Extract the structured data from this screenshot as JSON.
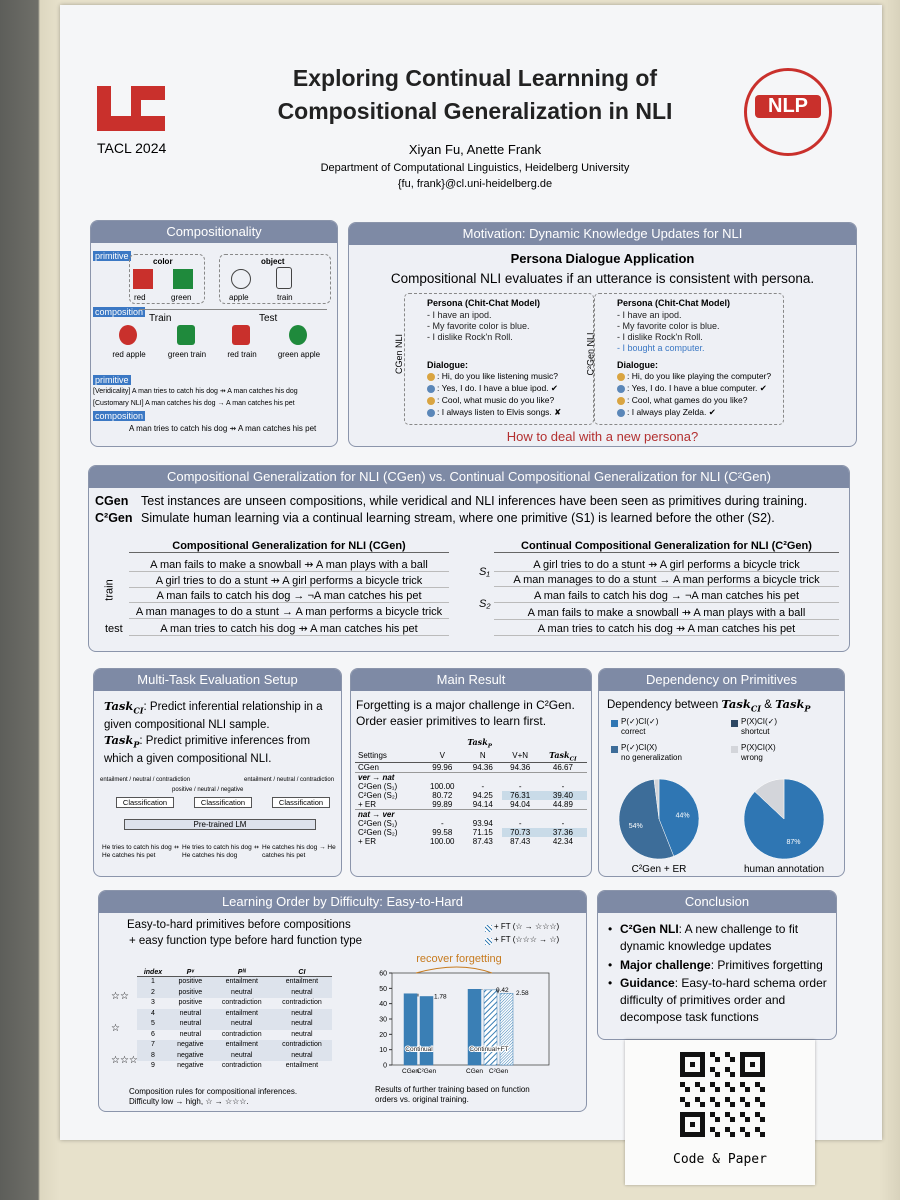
{
  "header": {
    "title_line1": "Exploring Continual Learnning of",
    "title_line2": "Compositional Generalization in NLI",
    "venue": "TACL 2024",
    "authors": "Xiyan Fu, Anette Frank",
    "affiliation": "Department of Computational Linguistics, Heidelberg University",
    "email": "{fu, frank}@cl.uni-heidelberg.de",
    "logo_text": "NLP"
  },
  "compositionality": {
    "title": "Compositionality",
    "primitive_tag": "primitive",
    "color_label": "color",
    "object_label": "object",
    "items": [
      "red",
      "green",
      "apple",
      "train"
    ],
    "composition_tag": "composition",
    "train_label": "Train",
    "test_label": "Test",
    "compositions": [
      "red apple",
      "green train",
      "red train",
      "green apple"
    ],
    "examples": [
      "[Veridicality] A man tries to catch his dog ⇸ A man catches his dog",
      "[Customary NLI] A man catches his dog → A man catches his pet"
    ],
    "composition_example": "A man tries to catch his dog ⇸ A man catches his pet"
  },
  "motivation": {
    "title": "Motivation: Dynamic Knowledge Updates for NLI",
    "subtitle": "Persona Dialogue Application",
    "lead": "Compositional NLI evaluates if an utterance is consistent with persona.",
    "panels": [
      {
        "side": "CGen NLI",
        "persona_label": "Persona (Chit-Chat Model)",
        "persona": [
          "- I have an ipod.",
          "- My favorite color is blue.",
          "- I dislike Rock'n Roll."
        ],
        "dialogue_label": "Dialogue:",
        "dialogue": [
          ": Hi, do you like listening music?",
          ": Yes, I do. I have a blue ipod. ✔",
          ": Cool, what music do you like?",
          ": I always listen to Elvis songs. ✘"
        ]
      },
      {
        "side": "C²Gen NLI",
        "persona_label": "Persona (Chit-Chat Model)",
        "persona": [
          "- I have an ipod.",
          "- My favorite color is blue.",
          "- I dislike Rock'n Roll.",
          "- I bought a computer."
        ],
        "dialogue_label": "Dialogue:",
        "dialogue": [
          ": Hi, do you like playing the computer?",
          ": Yes, I do. I have a blue computer. ✔",
          ": Cool, what games do you like?",
          ": I always play Zelda. ✔"
        ]
      }
    ],
    "question": "How to deal with a new persona?"
  },
  "cgen": {
    "title": "Compositional Generalization for NLI (CGen) vs. Continual Compositional Generalization for NLI (C²Gen)",
    "defs": [
      {
        "term": "CGen",
        "text": "Test instances are unseen compositions, while veridical and NLI inferences have been seen as primitives during training."
      },
      {
        "term": "C²Gen",
        "text": "Simulate human learning via a continual learning stream, where one primitive (S1) is learned before the other (S2)."
      }
    ],
    "left": {
      "title": "Compositional Generalization for NLI (CGen)",
      "train_label": "train",
      "test_label": "test",
      "rows": [
        "A man fails to make a snowball ⇸ A man plays with a ball",
        "A girl tries to do a stunt ⇸ A girl performs a bicycle trick",
        "A man fails to catch his dog → ¬A man catches his pet",
        "A man manages to do a stunt → A man performs a bicycle trick",
        "A man tries to catch his dog ⇸ A man catches his pet"
      ]
    },
    "right": {
      "title": "Continual Compositional Generalization for NLI (C²Gen)",
      "s1_label": "S₁",
      "s2_label": "S₂",
      "rows": [
        "A girl tries to do a stunt ⇸ A girl performs a bicycle trick",
        "A man manages to do a stunt → A man performs a bicycle trick",
        "A man fails to catch his dog → ¬A man catches his pet",
        "A man fails to make a snowball ⇸ A man plays with a ball",
        "A man tries to catch his dog ⇸ A man catches his pet"
      ]
    }
  },
  "multitask": {
    "title": "Multi-Task Evaluation Setup",
    "tasks": [
      {
        "name": "Task",
        "sub": "CI",
        "text": ": Predict inferential relationship in a given compositional NLI sample."
      },
      {
        "name": "Task",
        "sub": "P",
        "text": ": Predict primitive inferences from which a given compositional NLI."
      }
    ],
    "outputs": [
      "entailment / neutral / contradiction",
      "positive / neutral / negative",
      "entailment / neutral / contradiction"
    ],
    "classifier": "Classification",
    "encoder": "Pre-trained LM",
    "inputs": [
      "He tries to catch his dog ⇸ He catches his pet",
      "He tries to catch his dog ⇸ He catches his dog",
      "He catches his dog → He catches his pet"
    ]
  },
  "main_result": {
    "title": "Main Result",
    "text": "Forgetting is a major challenge in C²Gen. Order easier primitives to learn first.",
    "header_group": {
      "name": "Task",
      "sub": "P"
    },
    "header": [
      "Settings",
      "V",
      "N",
      "V+N"
    ],
    "header_ci": {
      "name": "Task",
      "sub": "CI"
    },
    "rows": [
      [
        "CGen",
        "99.96",
        "94.36",
        "94.36",
        "46.67"
      ]
    ],
    "groups": [
      {
        "label": "ver → nat",
        "rows": [
          [
            "C²Gen (S₁)",
            "100.00",
            "-",
            "-",
            "-"
          ],
          [
            "C²Gen (S₂)",
            "80.72",
            "94.25",
            "76.31",
            "39.40"
          ],
          [
            "+ ER",
            "99.89",
            "94.14",
            "94.04",
            "44.89"
          ]
        ]
      },
      {
        "label": "nat → ver",
        "rows": [
          [
            "C²Gen (S₁)",
            "-",
            "93.94",
            "-",
            "-"
          ],
          [
            "C²Gen (S₂)",
            "99.58",
            "71.15",
            "70.73",
            "37.36"
          ],
          [
            "+ ER",
            "100.00",
            "87.43",
            "87.43",
            "42.34"
          ]
        ]
      }
    ]
  },
  "dependency": {
    "title": "Dependency on Primitives",
    "text_prefix": "Dependency between",
    "task_a": {
      "name": "Task",
      "sub": "CI"
    },
    "joiner": "&",
    "task_b": {
      "name": "Task",
      "sub": "P"
    },
    "legend": [
      {
        "label": "P(✓)CI(✓)",
        "desc": "correct",
        "color": "#2f76b3"
      },
      {
        "label": "P(X)CI(✓)",
        "desc": "shortcut",
        "color": "#2c4763"
      },
      {
        "label": "P(✓)CI(X)",
        "desc": "no generalization",
        "color": "#3d6d99"
      },
      {
        "label": "P(X)CI(X)",
        "desc": "wrong",
        "color": "#d3d5da"
      }
    ],
    "pies": [
      {
        "caption": "C²Gen + ER",
        "values": [
          44,
          54,
          2
        ],
        "value_labels": [
          "44%",
          "54%",
          null
        ],
        "colors": [
          "#2f76b3",
          "#3d6d99",
          "#d3d5da"
        ]
      },
      {
        "caption": "human annotation",
        "values": [
          87,
          13
        ],
        "value_labels": [
          "87%",
          null
        ],
        "colors": [
          "#2f76b3",
          "#d3d5da"
        ]
      }
    ]
  },
  "learning_order": {
    "title": "Learning Order by Difficulty: Easy-to-Hard",
    "lines": [
      "Easy-to-hard primitives before compositions",
      "+ easy function type before hard function type"
    ],
    "legend": [
      "+ FT (☆ → ☆☆☆)",
      "+ FT (☆☆☆ → ☆)"
    ],
    "table": {
      "header": [
        "index",
        "Pᵛ",
        "Pᴺ",
        "CI"
      ],
      "rows": [
        [
          "1",
          "positive",
          "entailment",
          "entailment"
        ],
        [
          "2",
          "positive",
          "neutral",
          "neutral"
        ],
        [
          "3",
          "positive",
          "contradiction",
          "contradiction"
        ],
        [
          "4",
          "neutral",
          "entailment",
          "neutral"
        ],
        [
          "5",
          "neutral",
          "neutral",
          "neutral"
        ],
        [
          "6",
          "neutral",
          "contradiction",
          "neutral"
        ],
        [
          "7",
          "negative",
          "entailment",
          "contradiction"
        ],
        [
          "8",
          "negative",
          "neutral",
          "neutral"
        ],
        [
          "9",
          "negative",
          "contradiction",
          "entailment"
        ]
      ],
      "stars": [
        "☆☆",
        "☆",
        "☆☆☆"
      ]
    },
    "table_caption": [
      "Composition rules for compositional inferences.",
      "Difficulty low → high, ☆ → ☆☆☆."
    ],
    "chart": {
      "type": "bar",
      "annotation": "recover forgetting",
      "categories": [
        "CGen",
        "C²Gen",
        "CGen",
        "C²Gen",
        null
      ],
      "values": [
        46.5,
        44.7,
        49.4,
        49.0,
        46.8
      ],
      "patterns": [
        "solid",
        "solid",
        "solid",
        "hatch",
        "dense"
      ],
      "color": "#3a7fb5",
      "ylim": [
        0,
        60
      ],
      "yticks": [
        0,
        10,
        20,
        30,
        40,
        50,
        60
      ],
      "groups": [
        "Continual",
        "Continual+FT"
      ],
      "drops": [
        "1.78",
        "0.42",
        "2.58"
      ]
    },
    "chart_caption": [
      "Results of further training based on function",
      "orders vs. original training."
    ]
  },
  "conclusion": {
    "title": "Conclusion",
    "items": [
      {
        "bold": "C²Gen NLI",
        "text": ": A new challenge to fit dynamic knowledge updates"
      },
      {
        "bold": "Major challenge",
        "text": ": Primitives forgetting"
      },
      {
        "bold": "Guidance",
        "text": ": Easy-to-hard schema order difficulty of primitives order and decompose task functions"
      }
    ]
  },
  "note": {
    "label": "Code & Paper"
  }
}
